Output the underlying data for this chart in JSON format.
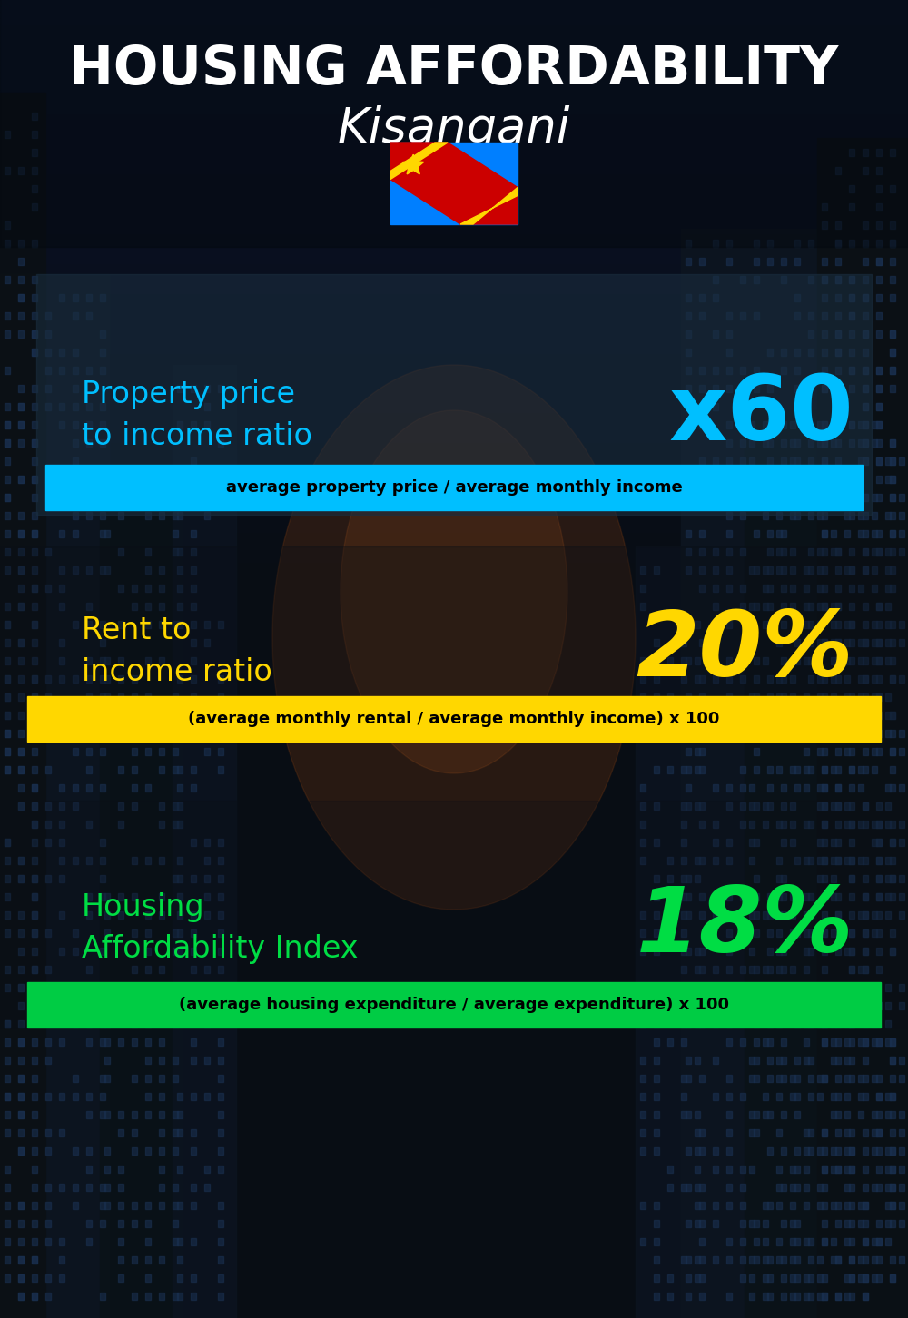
{
  "title_line1": "HOUSING AFFORDABILITY",
  "title_line2": "Kisangani",
  "section1_label": "Property price\nto income ratio",
  "section1_value": "x60",
  "section1_sublabel": "average property price / average monthly income",
  "section1_label_color": "#00bfff",
  "section1_value_color": "#00bfff",
  "section1_bar_color": "#00bfff",
  "section2_label": "Rent to\nincome ratio",
  "section2_value": "20%",
  "section2_sublabel": "(average monthly rental / average monthly income) x 100",
  "section2_label_color": "#ffd700",
  "section2_value_color": "#ffd700",
  "section2_bar_color": "#ffd700",
  "section3_label": "Housing\nAffordability Index",
  "section3_value": "18%",
  "section3_sublabel": "(average housing expenditure / average expenditure) x 100",
  "section3_label_color": "#00dd44",
  "section3_value_color": "#00dd44",
  "section3_bar_color": "#00cc44",
  "bg_color": "#080d14",
  "title_color": "#ffffff",
  "sublabel_text_color": "#000000",
  "panel1_color": "#1c2b3a",
  "panel2_color": "#111820",
  "sky_top": "#1a2d45",
  "sky_mid": "#2a4060",
  "sky_glow": "#b06020"
}
